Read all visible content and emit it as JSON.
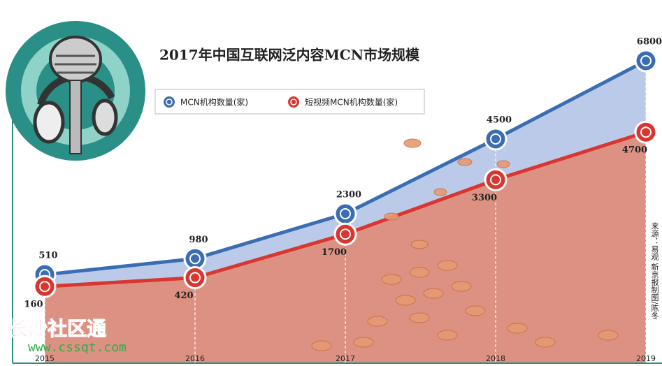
{
  "chart_data": {
    "type": "area",
    "title": "2017年中国互联网泛内容MCN市场规模",
    "categories": [
      "2015",
      "2016",
      "2017",
      "2018",
      "2019"
    ],
    "series": [
      {
        "name": "MCN机构数量(家)",
        "color": "#3b6db3",
        "fill": "#bccaea",
        "values": [
          510,
          980,
          2300,
          4500,
          6800
        ]
      },
      {
        "name": "短视频MCN机构数量(家)",
        "color": "#d9362f",
        "fill": "#dc9183",
        "values": [
          160,
          420,
          1700,
          3300,
          4700
        ]
      }
    ],
    "source": "来源：易观 新京报制图/陈冬"
  },
  "watermark": {
    "name": "长沙社区通",
    "url": "www.cssqt.com"
  }
}
